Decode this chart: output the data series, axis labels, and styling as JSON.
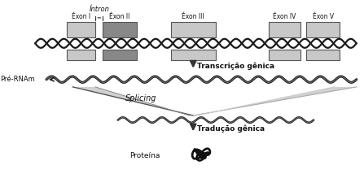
{
  "title": "",
  "bg_color": "#ffffff",
  "fig_width": 4.47,
  "fig_height": 2.41,
  "dpi": 100,
  "exon_labels": [
    "Éxon I",
    "Éxon II",
    "Éxon III",
    "Éxon IV",
    "Éxon V"
  ],
  "intron_label": "Íntron",
  "transcricao_label": "Transcrição gênica",
  "splicing_label": "Splicing",
  "traducao_label": "Tradução gênica",
  "pre_rnam_label": "Pré-RNAm",
  "proteina_label": "Proteína",
  "exon_color_light": "#c8c8c8",
  "exon_color_dark": "#888888",
  "dna_color": "#222222",
  "arrow_color": "#444444",
  "text_color": "#111111"
}
